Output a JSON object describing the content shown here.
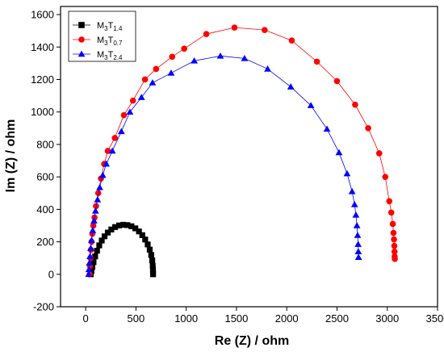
{
  "chart_data": {
    "type": "scatter",
    "xlabel": "Re (Z) / ohm",
    "ylabel": "Im (Z) / ohm",
    "xlim": [
      -250,
      3500
    ],
    "ylim": [
      -200,
      1650
    ],
    "x_ticks": [
      0,
      500,
      1000,
      1500,
      2000,
      2500,
      3000,
      3500
    ],
    "y_ticks": [
      -200,
      0,
      200,
      400,
      600,
      800,
      1000,
      1200,
      1400,
      1600
    ],
    "grid": false,
    "legend_position": "top-left",
    "series": [
      {
        "name": "M3T1.4",
        "label_main": "M",
        "label_sub1": "3",
        "label_mid": "T",
        "label_sub2": "1.4",
        "color": "#000000",
        "marker": "square",
        "points": [
          [
            50,
            0
          ],
          [
            57,
            20
          ],
          [
            66,
            45
          ],
          [
            78,
            75
          ],
          [
            94,
            110
          ],
          [
            113,
            145
          ],
          [
            135,
            178
          ],
          [
            160,
            208
          ],
          [
            188,
            234
          ],
          [
            220,
            257
          ],
          [
            255,
            276
          ],
          [
            293,
            291
          ],
          [
            333,
            301
          ],
          [
            374,
            305
          ],
          [
            415,
            303
          ],
          [
            455,
            296
          ],
          [
            494,
            283
          ],
          [
            530,
            264
          ],
          [
            563,
            241
          ],
          [
            592,
            214
          ],
          [
            617,
            184
          ],
          [
            637,
            152
          ],
          [
            652,
            119
          ],
          [
            662,
            86
          ],
          [
            667,
            53
          ],
          [
            669,
            30
          ],
          [
            670,
            10
          ],
          [
            670,
            0
          ]
        ]
      },
      {
        "name": "M3T0.7",
        "label_main": "M",
        "label_sub1": "3",
        "label_mid": "T",
        "label_sub2": "0.7",
        "color": "#ff0000",
        "marker": "circle",
        "points": [
          [
            40,
            0
          ],
          [
            43,
            50
          ],
          [
            47,
            100
          ],
          [
            52,
            150
          ],
          [
            58,
            200
          ],
          [
            66,
            250
          ],
          [
            76,
            300
          ],
          [
            88,
            350
          ],
          [
            103,
            420
          ],
          [
            125,
            500
          ],
          [
            152,
            590
          ],
          [
            184,
            680
          ],
          [
            220,
            760
          ],
          [
            290,
            840
          ],
          [
            380,
            980
          ],
          [
            470,
            1070
          ],
          [
            590,
            1200
          ],
          [
            700,
            1265
          ],
          [
            860,
            1340
          ],
          [
            980,
            1390
          ],
          [
            1200,
            1480
          ],
          [
            1480,
            1520
          ],
          [
            1780,
            1505
          ],
          [
            2050,
            1440
          ],
          [
            2300,
            1310
          ],
          [
            2500,
            1190
          ],
          [
            2680,
            1045
          ],
          [
            2810,
            900
          ],
          [
            2920,
            745
          ],
          [
            2980,
            600
          ],
          [
            3020,
            450
          ],
          [
            3040,
            380
          ],
          [
            3055,
            310
          ],
          [
            3062,
            255
          ],
          [
            3067,
            215
          ],
          [
            3070,
            175
          ],
          [
            3072,
            140
          ],
          [
            3073,
            110
          ],
          [
            3075,
            95
          ]
        ]
      },
      {
        "name": "M3T2.4",
        "label_main": "M",
        "label_sub1": "3",
        "label_mid": "T",
        "label_sub2": "2.4",
        "color": "#0000ff",
        "marker": "triangle",
        "points": [
          [
            30,
            0
          ],
          [
            33,
            30
          ],
          [
            37,
            70
          ],
          [
            43,
            110
          ],
          [
            50,
            160
          ],
          [
            59,
            210
          ],
          [
            70,
            270
          ],
          [
            83,
            330
          ],
          [
            98,
            390
          ],
          [
            118,
            460
          ],
          [
            140,
            535
          ],
          [
            170,
            610
          ],
          [
            205,
            680
          ],
          [
            265,
            760
          ],
          [
            355,
            880
          ],
          [
            440,
            1000
          ],
          [
            555,
            1090
          ],
          [
            665,
            1180
          ],
          [
            850,
            1240
          ],
          [
            1080,
            1315
          ],
          [
            1340,
            1345
          ],
          [
            1580,
            1330
          ],
          [
            1810,
            1265
          ],
          [
            2040,
            1155
          ],
          [
            2240,
            1040
          ],
          [
            2400,
            895
          ],
          [
            2520,
            750
          ],
          [
            2600,
            620
          ],
          [
            2650,
            510
          ],
          [
            2675,
            430
          ],
          [
            2688,
            365
          ],
          [
            2698,
            300
          ],
          [
            2705,
            240
          ],
          [
            2710,
            185
          ],
          [
            2712,
            140
          ],
          [
            2714,
            105
          ]
        ]
      }
    ]
  }
}
